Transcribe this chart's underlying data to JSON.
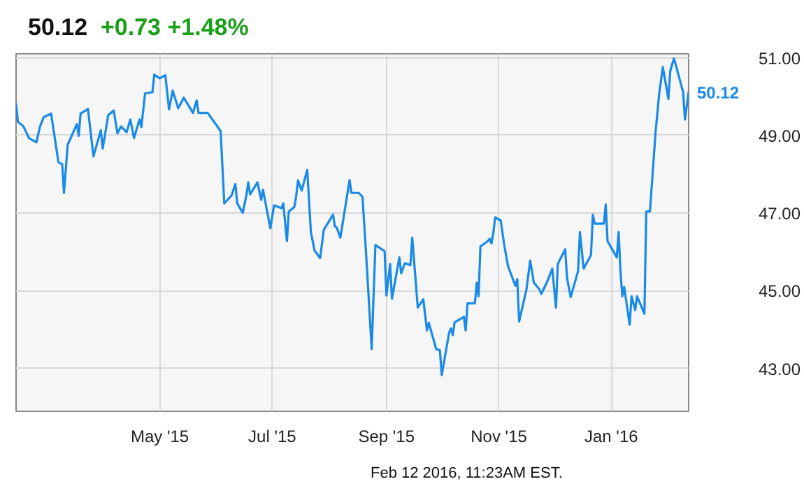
{
  "chart_data": {
    "type": "line",
    "title": "50.12",
    "subtitle": "+0.73 +1.48%",
    "x": [
      "2015-02-12",
      "2015-02-13",
      "2015-02-16",
      "2015-02-19",
      "2015-02-23",
      "2015-02-25",
      "2015-02-27",
      "2015-03-03",
      "2015-03-07",
      "2015-03-09",
      "2015-03-10",
      "2015-03-12",
      "2015-03-17",
      "2015-03-18",
      "2015-03-19",
      "2015-03-23",
      "2015-03-26",
      "2015-03-30",
      "2015-03-31",
      "2015-04-03",
      "2015-04-06",
      "2015-04-08",
      "2015-04-10",
      "2015-04-13",
      "2015-04-15",
      "2015-04-17",
      "2015-04-20",
      "2015-04-21",
      "2015-04-23",
      "2015-04-27",
      "2015-04-28",
      "2015-05-01",
      "2015-05-04",
      "2015-05-06",
      "2015-05-08",
      "2015-05-11",
      "2015-05-14",
      "2015-05-19",
      "2015-05-21",
      "2015-05-22",
      "2015-05-27",
      "2015-06-03",
      "2015-06-05",
      "2015-06-09",
      "2015-06-11",
      "2015-06-12",
      "2015-06-15",
      "2015-06-17",
      "2015-06-18",
      "2015-06-19",
      "2015-06-23",
      "2015-06-25",
      "2015-06-26",
      "2015-06-30",
      "2015-07-02",
      "2015-07-06",
      "2015-07-07",
      "2015-07-09",
      "2015-07-10",
      "2015-07-13",
      "2015-07-14",
      "2015-07-15",
      "2015-07-17",
      "2015-07-20",
      "2015-07-22",
      "2015-07-24",
      "2015-07-27",
      "2015-07-29",
      "2015-08-03",
      "2015-08-04",
      "2015-08-05",
      "2015-08-07",
      "2015-08-12",
      "2015-08-13",
      "2015-08-17",
      "2015-08-19",
      "2015-08-21",
      "2015-08-24",
      "2015-08-26",
      "2015-08-31",
      "2015-09-01",
      "2015-09-03",
      "2015-09-04",
      "2015-09-08",
      "2015-09-09",
      "2015-09-11",
      "2015-09-14",
      "2015-09-15",
      "2015-09-18",
      "2015-09-21",
      "2015-09-23",
      "2015-09-24",
      "2015-09-28",
      "2015-09-30",
      "2015-10-01",
      "2015-10-05",
      "2015-10-06",
      "2015-10-07",
      "2015-10-08",
      "2015-10-13",
      "2015-10-14",
      "2015-10-15",
      "2015-10-19",
      "2015-10-20",
      "2015-10-21",
      "2015-10-22",
      "2015-10-26",
      "2015-10-27",
      "2015-10-28",
      "2015-10-29",
      "2015-10-30",
      "2015-11-02",
      "2015-11-04",
      "2015-11-06",
      "2015-11-10",
      "2015-11-11",
      "2015-11-12",
      "2015-11-16",
      "2015-11-18",
      "2015-11-20",
      "2015-11-23",
      "2015-11-24",
      "2015-11-27",
      "2015-11-30",
      "2015-12-02",
      "2015-12-03",
      "2015-12-07",
      "2015-12-08",
      "2015-12-10",
      "2015-12-14",
      "2015-12-15",
      "2015-12-17",
      "2015-12-21",
      "2015-12-22",
      "2015-12-23",
      "2015-12-28",
      "2015-12-29",
      "2015-12-30",
      "2016-01-04",
      "2016-01-05",
      "2016-01-06",
      "2016-01-07",
      "2016-01-08",
      "2016-01-11",
      "2016-01-12",
      "2016-01-14",
      "2016-01-15",
      "2016-01-19",
      "2016-01-20",
      "2016-01-22",
      "2016-01-25",
      "2016-01-27",
      "2016-01-29",
      "2016-02-01",
      "2016-02-02",
      "2016-02-04",
      "2016-02-05",
      "2016-02-09",
      "2016-02-10",
      "2016-02-12"
    ],
    "series": [
      {
        "color": "#1a8ae6",
        "values": [
          49.82,
          49.35,
          49.23,
          48.93,
          48.82,
          49.23,
          49.47,
          49.56,
          48.31,
          48.26,
          47.52,
          48.76,
          49.29,
          48.99,
          49.56,
          49.68,
          48.46,
          49.13,
          48.66,
          49.52,
          49.64,
          49.05,
          49.23,
          49.08,
          49.41,
          48.93,
          49.41,
          49.21,
          50.08,
          50.11,
          50.56,
          50.47,
          50.55,
          49.67,
          50.15,
          49.7,
          49.97,
          49.58,
          49.9,
          49.58,
          49.58,
          49.11,
          47.25,
          47.46,
          47.75,
          47.25,
          47.01,
          47.46,
          47.79,
          47.48,
          47.79,
          47.34,
          47.6,
          46.61,
          47.2,
          47.13,
          47.25,
          46.28,
          47.04,
          47.16,
          47.43,
          47.84,
          47.58,
          48.11,
          46.51,
          46.04,
          45.84,
          46.57,
          46.96,
          46.66,
          46.63,
          46.37,
          47.85,
          47.52,
          47.52,
          47.42,
          45.92,
          43.5,
          46.18,
          46.02,
          44.88,
          45.69,
          44.8,
          45.86,
          45.45,
          45.71,
          45.66,
          46.37,
          44.57,
          44.78,
          43.98,
          44.18,
          43.5,
          43.47,
          42.83,
          43.92,
          44.03,
          43.86,
          44.19,
          44.33,
          43.98,
          44.68,
          44.68,
          45.21,
          44.86,
          46.14,
          46.28,
          46.34,
          46.22,
          46.49,
          46.89,
          46.81,
          46.16,
          45.63,
          45.13,
          45.3,
          44.21,
          45.04,
          45.78,
          45.21,
          45.04,
          44.92,
          45.21,
          45.57,
          44.57,
          45.69,
          46.07,
          45.33,
          44.84,
          45.51,
          46.51,
          45.57,
          45.92,
          46.96,
          46.73,
          46.73,
          47.22,
          46.28,
          45.86,
          46.51,
          45.51,
          44.86,
          45.1,
          44.13,
          44.86,
          44.51,
          44.86,
          44.41,
          47.04,
          47.04,
          49.05,
          50.06,
          50.76,
          49.94,
          50.65,
          50.98,
          50.82,
          50.11,
          49.41,
          50.12
        ]
      }
    ],
    "xlim": [
      "2015-02-12",
      "2016-02-12"
    ],
    "xticks": [
      {
        "value": "2015-05-01",
        "label": "May '15"
      },
      {
        "value": "2015-07-01",
        "label": "Jul '15"
      },
      {
        "value": "2015-09-01",
        "label": "Sep '15"
      },
      {
        "value": "2015-11-01",
        "label": "Nov '15"
      },
      {
        "value": "2016-01-01",
        "label": "Jan '16"
      }
    ],
    "ylim": [
      41.9,
      51.1
    ],
    "yticks": [
      {
        "value": 43,
        "label": "43.00"
      },
      {
        "value": 45,
        "label": "45.00"
      },
      {
        "value": 47,
        "label": "47.00"
      },
      {
        "value": 49,
        "label": "49.00"
      },
      {
        "value": 51,
        "label": "51.00"
      }
    ],
    "annotations": [
      {
        "text": "50.12",
        "x": "2016-02-12",
        "y": 50.12
      },
      "Feb 12 2016, 11:23AM EST."
    ],
    "grid": true,
    "marker": "none",
    "line_style": "solid"
  }
}
